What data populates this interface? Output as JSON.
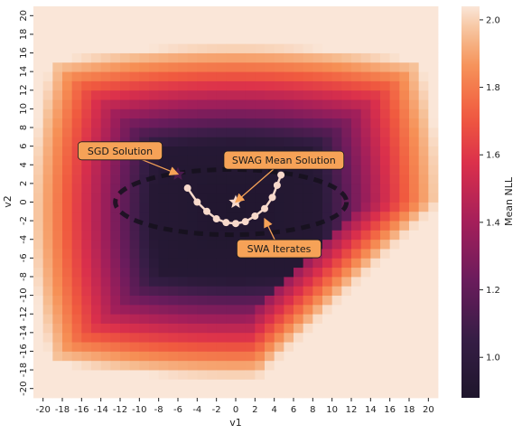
{
  "chart_data": {
    "type": "heatmap",
    "title": "",
    "xlabel": "v1",
    "ylabel": "v2",
    "xlim": [
      -21,
      21
    ],
    "ylim": [
      -21,
      21
    ],
    "x_ticks": [
      -20,
      -18,
      -16,
      -14,
      -12,
      -10,
      -8,
      -6,
      -4,
      -2,
      0,
      2,
      4,
      6,
      8,
      10,
      12,
      14,
      16,
      18,
      20
    ],
    "x_tick_labels": [
      "-20",
      "-18",
      "-16",
      "-14",
      "-12",
      "-10",
      "-8",
      "-6",
      "-4",
      "-2",
      "0",
      "2",
      "4",
      "6",
      "8",
      "10",
      "12",
      "14",
      "16",
      "18",
      "20"
    ],
    "y_ticks": [
      20,
      18,
      16,
      14,
      12,
      10,
      8,
      6,
      4,
      2,
      0,
      -2,
      -4,
      -6,
      -8,
      -10,
      -12,
      -14,
      -16,
      -18,
      -20
    ],
    "y_tick_labels": [
      "20",
      "18",
      "16",
      "14",
      "12",
      "10",
      "8",
      "6",
      "4",
      "2",
      "0",
      "-2",
      "-4",
      "-6",
      "-8",
      "-10",
      "-12",
      "-14",
      "-16",
      "-18",
      "-20"
    ],
    "grid_step": 2,
    "colorbar": {
      "label": "Mean NLL",
      "range": [
        0.88,
        2.04
      ],
      "ticks": [
        1.0,
        1.2,
        1.4,
        1.6,
        1.8,
        2.0
      ],
      "tick_labels": [
        "1.0",
        "1.2",
        "1.4",
        "1.6",
        "1.8",
        "2.0"
      ],
      "colormap": "rocket"
    },
    "surface_model": {
      "minimum_nll": 0.9,
      "basin_center": [
        0,
        -1
      ],
      "basin_half_widths": [
        9.5,
        8
      ],
      "clip_max": 2.04,
      "plateau_region": "lower-right"
    },
    "swa_iterates": [
      [
        -5,
        1.5
      ],
      [
        -4,
        0
      ],
      [
        -3,
        -1
      ],
      [
        -2,
        -1.8
      ],
      [
        -1,
        -2.2
      ],
      [
        0,
        -2.3
      ],
      [
        1,
        -2.1
      ],
      [
        2,
        -1.5
      ],
      [
        3,
        -0.7
      ],
      [
        3.8,
        0.5
      ],
      [
        4.3,
        1.8
      ],
      [
        4.7,
        2.9
      ]
    ],
    "sgd_solution": [
      -6,
      3
    ],
    "swag_mean_solution": [
      0,
      0
    ],
    "swag_contour_approx": {
      "center": [
        -0.5,
        0
      ],
      "half_widths": [
        12,
        3.5
      ]
    },
    "annotations": [
      {
        "label": "SGD Solution",
        "text_at": [
          -12,
          5.5
        ],
        "points_to": [
          -6,
          3
        ]
      },
      {
        "label": "SWAG Mean Solution",
        "text_at": [
          5,
          4.5
        ],
        "points_to": [
          0,
          0
        ]
      },
      {
        "label": "SWA Iterates",
        "text_at": [
          4.5,
          -5
        ],
        "points_to": [
          3,
          -1.8
        ]
      }
    ],
    "annotation_box_color": "#f6a257",
    "marker_color": "#f7d9cb",
    "sgd_marker_color": "#4a1a4d",
    "legend": "none"
  }
}
